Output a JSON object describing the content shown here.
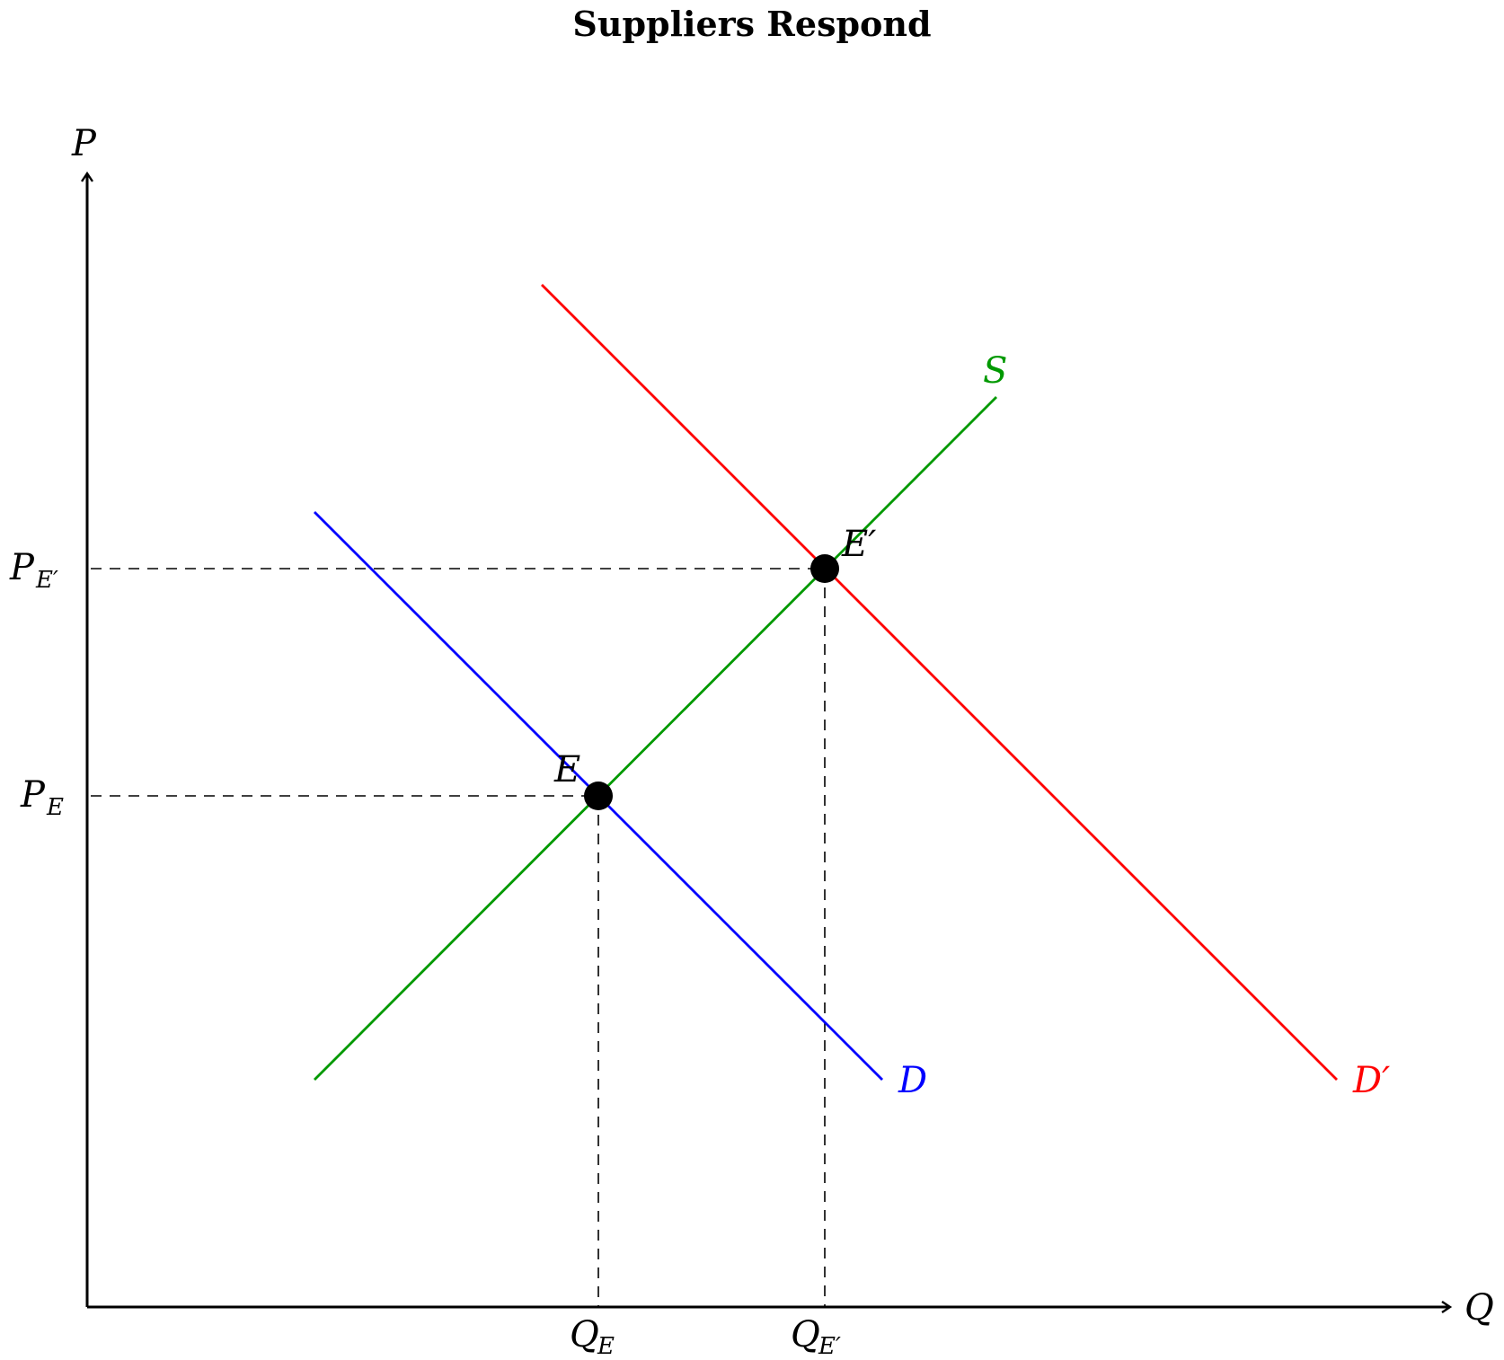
{
  "title": "Suppliers Respond",
  "colors": {
    "supply": "#009900",
    "demand": "#0000ff",
    "demand_new": "#ff0000",
    "points": "#000000"
  },
  "axes": {
    "y_label": "P",
    "x_label": "Q"
  },
  "curves": {
    "supply": {
      "label": "S"
    },
    "demand": {
      "label": "D"
    },
    "demand_new": {
      "label": "D′"
    }
  },
  "equilibria": {
    "original": {
      "label": "E",
      "price_label": "P",
      "price_sub": "E",
      "quantity_label": "Q",
      "quantity_sub": "E"
    },
    "new": {
      "label": "E′",
      "price_label": "P",
      "price_sub": "E′",
      "quantity_label": "Q",
      "quantity_sub": "E′"
    }
  }
}
